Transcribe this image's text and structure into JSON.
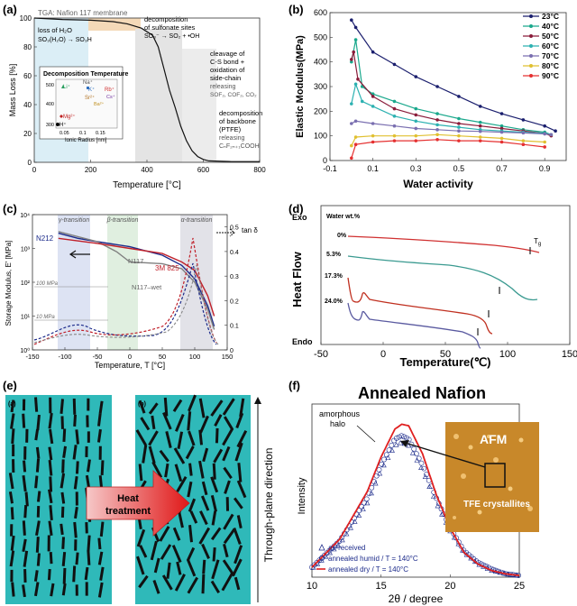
{
  "panels": {
    "a": {
      "label": "(a)",
      "header": "TGA: Nafion 117 membrane",
      "xlabel": "Temperature [°C]",
      "ylabel": "Mass Loss [%]",
      "xticks": [
        "0",
        "200",
        "400",
        "600",
        "800"
      ],
      "yticks": [
        "0",
        "20",
        "40",
        "60",
        "80",
        "100"
      ],
      "annotations": {
        "loss1": "loss of H₂O",
        "loss2": "SO₃(H₂O) → SO₃H",
        "dec1": "decomposition",
        "dec2": "of sulfonate sites",
        "dec3": "SO₃⁻ → SO₂ + •OH",
        "cleav1": "cleavage of",
        "cleav2": "C-S bond +",
        "cleav3": "oxidation of",
        "cleav4": "side-chain",
        "cleav5": "releasing",
        "cleav6": "SOF₂, COF₂, CO₂",
        "back1": "decomposition",
        "back2": "of backbone",
        "back3": "(PTFE)",
        "back4": "releasing",
        "back5": "CₙF₂ₙ₊₁COOH"
      },
      "inset": {
        "title": "Decomposition Temperature",
        "xlabel": "Ionic Radius [nm]",
        "xticks": [
          "0.05",
          "0.1",
          "0.15"
        ],
        "yticks": [
          "300",
          "400",
          "500"
        ],
        "ions": [
          "Li⁺",
          "Na⁺",
          "K⁺",
          "Sr²⁺",
          "Rb⁺",
          "Cs⁺",
          "Ba²⁺",
          "Mg²⁺",
          "H⁺"
        ]
      }
    },
    "b": {
      "label": "(b)",
      "xlabel": "Water activity",
      "ylabel": "Elastic Modulus(MPa)",
      "xticks": [
        "-0.1",
        "0.1",
        "0.3",
        "0.5",
        "0.7",
        "0.9"
      ],
      "yticks": [
        "0",
        "100",
        "200",
        "300",
        "400",
        "500",
        "600"
      ],
      "legend": [
        "23°C",
        "40°C",
        "50°C",
        "60°C",
        "70°C",
        "80°C",
        "90°C"
      ]
    },
    "c": {
      "label": "(c)",
      "xlabel": "Temperature, T [°C]",
      "ylabel": "Storage Modulus, E' [MPa]",
      "y2label": "tan δ",
      "xticks": [
        "-150",
        "-100",
        "-50",
        "0",
        "50",
        "100",
        "150"
      ],
      "yticks": [
        "10⁰",
        "10¹",
        "10²",
        "10³",
        "10⁴"
      ],
      "y2ticks": [
        "0",
        "0.1",
        "0.2",
        "0.3",
        "0.4",
        "0.5"
      ],
      "transitions": [
        "γ-transition",
        "β-transition",
        "α-transition"
      ],
      "labels": {
        "n212": "N212",
        "n117": "N117",
        "n117wet": "N117–wet",
        "m825": "3M 825",
        "mpa100": "100 MPa",
        "mpa10": "10 MPa"
      }
    },
    "d": {
      "label": "(d)",
      "ylabel": "Heat Flow",
      "xlabel": "Temperature(℃)",
      "xticks": [
        "-50",
        "0",
        "50",
        "100",
        "150"
      ],
      "exo": "Exo",
      "endo": "Endo",
      "legend_title": "Water wt.%",
      "curves": [
        "0%",
        "5.3%",
        "17.3%",
        "24.0%"
      ],
      "tg": "T",
      "tg_sub": "g"
    },
    "e": {
      "label": "(e)",
      "sub_a": "(a)",
      "sub_b": "(b)",
      "arrow_text1": "Heat",
      "arrow_text2": "treatment",
      "side_label": "Through-plane direction"
    },
    "f": {
      "label": "(f)",
      "title": "Annealed Nafion",
      "ylabel": "Intensity",
      "xlabel": "2θ / degree",
      "xticks": [
        "10",
        "15",
        "20",
        "25"
      ],
      "halo1": "amorphous",
      "halo2": "halo",
      "afm": "AFM",
      "tfe": "TFE crystallites",
      "legend": [
        "as-received",
        "annealed humid / T = 140°C",
        "annealed dry / T = 140°C"
      ]
    }
  },
  "chart_data": [
    {
      "type": "line",
      "title": "TGA: Nafion 117 membrane",
      "xlabel": "Temperature [°C]",
      "ylabel": "Mass Loss [%]",
      "xlim": [
        0,
        800
      ],
      "ylim": [
        0,
        100
      ],
      "series": [
        {
          "name": "Nafion 117",
          "x": [
            0,
            100,
            200,
            280,
            330,
            380,
            420,
            440,
            460,
            480,
            500,
            520,
            540,
            560,
            580,
            600,
            620,
            700,
            800
          ],
          "y": [
            100,
            99,
            98.5,
            97.5,
            96,
            93,
            88,
            80,
            65,
            50,
            38,
            25,
            15,
            8,
            4,
            2,
            1,
            0.5,
            0.5
          ]
        }
      ]
    },
    {
      "type": "line",
      "xlabel": "Water activity",
      "ylabel": "Elastic Modulus(MPa)",
      "xlim": [
        -0.1,
        1.0
      ],
      "ylim": [
        0,
        600
      ],
      "series": [
        {
          "name": "23°C",
          "color": "#1b1f6e",
          "x": [
            0,
            0.02,
            0.1,
            0.2,
            0.3,
            0.4,
            0.5,
            0.6,
            0.7,
            0.8,
            0.9,
            0.95
          ],
          "y": [
            570,
            540,
            440,
            390,
            340,
            300,
            260,
            220,
            190,
            165,
            140,
            120
          ]
        },
        {
          "name": "40°C",
          "color": "#1aa88c",
          "x": [
            0,
            0.02,
            0.05,
            0.1,
            0.2,
            0.3,
            0.4,
            0.5,
            0.6,
            0.7,
            0.8,
            0.9,
            0.93
          ],
          "y": [
            400,
            490,
            300,
            270,
            240,
            210,
            190,
            170,
            155,
            140,
            125,
            115,
            105
          ]
        },
        {
          "name": "50°C",
          "color": "#8a1c3a",
          "x": [
            0,
            0.01,
            0.03,
            0.1,
            0.2,
            0.3,
            0.4,
            0.5,
            0.6,
            0.7,
            0.8,
            0.9,
            0.93
          ],
          "y": [
            410,
            440,
            330,
            260,
            210,
            185,
            165,
            150,
            140,
            130,
            120,
            110,
            100
          ]
        },
        {
          "name": "60°C",
          "color": "#2cb1b1",
          "x": [
            0,
            0.02,
            0.05,
            0.1,
            0.2,
            0.3,
            0.4,
            0.5,
            0.6,
            0.7,
            0.8,
            0.9,
            0.93
          ],
          "y": [
            230,
            310,
            240,
            220,
            180,
            160,
            145,
            135,
            125,
            120,
            115,
            110,
            105
          ]
        },
        {
          "name": "70°C",
          "color": "#7a6fb0",
          "x": [
            0,
            0.02,
            0.1,
            0.2,
            0.3,
            0.4,
            0.5,
            0.6,
            0.7,
            0.8,
            0.9,
            0.93
          ],
          "y": [
            150,
            160,
            150,
            140,
            130,
            125,
            120,
            118,
            115,
            112,
            108,
            105
          ]
        },
        {
          "name": "80°C",
          "color": "#e0c030",
          "x": [
            0,
            0.02,
            0.1,
            0.2,
            0.3,
            0.4,
            0.5,
            0.6,
            0.7,
            0.8,
            0.9
          ],
          "y": [
            60,
            95,
            100,
            100,
            100,
            105,
            100,
            95,
            90,
            80,
            75
          ]
        },
        {
          "name": "90°C",
          "color": "#e53030",
          "x": [
            0,
            0.02,
            0.1,
            0.2,
            0.3,
            0.4,
            0.5,
            0.6,
            0.7,
            0.8,
            0.9
          ],
          "y": [
            10,
            65,
            75,
            80,
            80,
            85,
            80,
            80,
            75,
            65,
            55
          ]
        }
      ]
    },
    {
      "type": "line",
      "xlabel": "Temperature, T [°C]",
      "ylabel": "Storage Modulus, E' [MPa]",
      "xlim": [
        -150,
        150
      ],
      "ylim_log10": [
        0,
        4
      ],
      "series": [
        {
          "name": "N212",
          "color": "#1b2a8a",
          "x": [
            -110,
            -80,
            -50,
            0,
            50,
            80,
            100,
            120,
            130
          ],
          "y_log10": [
            3.45,
            3.3,
            3.2,
            3.05,
            2.8,
            2.5,
            2.1,
            1.3,
            0.7
          ]
        },
        {
          "name": "N117",
          "color": "#808080",
          "x": [
            -110,
            -80,
            -50,
            -20,
            0,
            50,
            80,
            100,
            120,
            130
          ],
          "y_log10": [
            3.5,
            3.35,
            3.2,
            2.9,
            2.6,
            2.55,
            2.4,
            2.0,
            1.2,
            0.6
          ]
        },
        {
          "name": "3M 825",
          "color": "#c0202a",
          "x": [
            -110,
            -50,
            0,
            50,
            80,
            100,
            120,
            130
          ],
          "y_log10": [
            3.3,
            3.15,
            3.0,
            2.85,
            2.6,
            2.35,
            1.6,
            1.0
          ]
        }
      ]
    },
    {
      "type": "line",
      "ylabel": "Heat Flow",
      "xlabel": "Temperature(℃)",
      "xlim": [
        -50,
        150
      ],
      "series": [
        {
          "name": "0%",
          "color": "#d03030",
          "x": [
            -30,
            0,
            50,
            100,
            140
          ],
          "y": [
            9.0,
            8.8,
            8.5,
            8.1,
            7.6
          ]
        },
        {
          "name": "5.3%",
          "color": "#3a9a90",
          "x": [
            -30,
            0,
            50,
            80,
            100,
            115,
            125,
            135
          ],
          "y": [
            7.7,
            7.4,
            7.2,
            6.9,
            6.5,
            6.0,
            5.4,
            5.0
          ]
        },
        {
          "name": "17.3%",
          "color": "#c03020",
          "x": [
            -30,
            -20,
            -5,
            0,
            10,
            50,
            80,
            100,
            110,
            115
          ],
          "y": [
            5.9,
            4.2,
            4.0,
            4.3,
            3.9,
            3.6,
            3.2,
            2.7,
            2.2,
            1.5
          ]
        },
        {
          "name": "24.0%",
          "color": "#5a5aa0",
          "x": [
            -30,
            -20,
            -5,
            0,
            10,
            50,
            80,
            100,
            108,
            112
          ],
          "y": [
            4.4,
            3.0,
            2.8,
            3.1,
            2.6,
            2.3,
            1.9,
            1.4,
            0.8,
            0.2
          ]
        }
      ]
    },
    {
      "type": "scatter",
      "title": "Annealed Nafion",
      "xlabel": "2θ / degree",
      "ylabel": "Intensity",
      "xlim": [
        10,
        25
      ],
      "series": [
        {
          "name": "as-received",
          "color": "#1b2a8a",
          "x": [
            10,
            12,
            14,
            15,
            16,
            16.5,
            17,
            18,
            19,
            20,
            21,
            22,
            23,
            24,
            25
          ],
          "y": [
            0.05,
            0.2,
            0.45,
            0.65,
            0.8,
            0.82,
            0.8,
            0.65,
            0.45,
            0.28,
            0.15,
            0.08,
            0.04,
            0.02,
            0.01
          ]
        },
        {
          "name": "annealed humid / T = 140°C",
          "color": "#3040a0",
          "x": [
            10,
            12,
            14,
            15,
            16,
            16.5,
            17,
            18,
            19,
            20,
            21,
            22,
            23,
            24,
            25
          ],
          "y": [
            0.06,
            0.22,
            0.48,
            0.68,
            0.84,
            0.86,
            0.84,
            0.68,
            0.48,
            0.3,
            0.16,
            0.09,
            0.05,
            0.02,
            0.01
          ]
        },
        {
          "name": "annealed dry / T = 140°C",
          "color": "#e02020",
          "x": [
            10,
            12,
            14,
            15,
            16,
            16.5,
            17,
            18,
            19,
            20,
            21,
            22,
            23,
            24,
            25
          ],
          "y": [
            0.06,
            0.23,
            0.52,
            0.73,
            0.9,
            0.93,
            0.92,
            0.75,
            0.5,
            0.3,
            0.15,
            0.08,
            0.04,
            0.02,
            0.01
          ]
        }
      ]
    }
  ]
}
